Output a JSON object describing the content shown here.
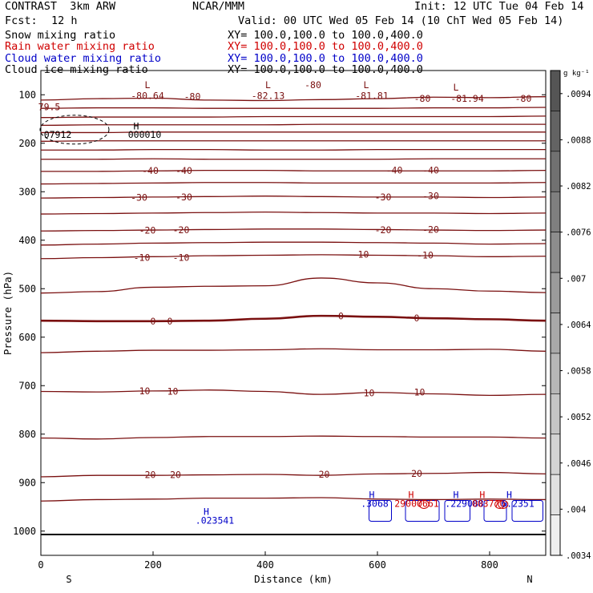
{
  "header": {
    "left_title": "CONTRAST  3km ARW",
    "center_title": "NCAR/MMM",
    "init": "Init: 12 UTC Tue 04 Feb 14",
    "fcst_label": "Fcst:",
    "fcst_value": "12 h",
    "valid": "Valid: 00 UTC Wed 05 Feb 14 (10 ChT Wed 05 Feb 14)"
  },
  "fields": [
    {
      "name": "Snow mixing ratio",
      "xy": "XY= 100.0,100.0 to 100.0,400.0",
      "color": "#000000"
    },
    {
      "name": "Rain water mixing ratio",
      "xy": "XY= 100.0,100.0 to 100.0,400.0",
      "color": "#d00000"
    },
    {
      "name": "Cloud water mixing ratio",
      "xy": "XY= 100.0,100.0 to 100.0,400.0",
      "color": "#0000c8"
    },
    {
      "name": "Cloud ice mixing ratio",
      "xy": "XY= 100.0,100.0 to 100.0,400.0",
      "color": "#000000"
    }
  ],
  "colors": {
    "contour": "#7a1010",
    "rain": "#d00000",
    "cloud_water": "#0000c8",
    "axis": "#000000"
  },
  "chart_data": {
    "type": "contour",
    "xlabel": "Distance (km)",
    "ylabel": "Pressure (hPa)",
    "xlim": [
      0,
      900
    ],
    "ylim": [
      1050,
      50
    ],
    "x_ticks": [
      "0",
      "200",
      "400",
      "600",
      "800"
    ],
    "y_ticks": [
      "100",
      "200",
      "300",
      "400",
      "500",
      "600",
      "700",
      "800",
      "900",
      "1000"
    ],
    "x_end_labels": {
      "left": "S",
      "right": "N"
    },
    "contour_levels_note": "Temperature contours every 5 °C (labels shown at -80,-40,-30,-20,-10,0,10,20)",
    "contours": [
      {
        "level": -80,
        "p": [
          111,
          108,
          107,
          111,
          112,
          110,
          108,
          105,
          106,
          104
        ]
      },
      {
        "level": -75,
        "p": [
          128,
          127,
          127,
          128,
          128,
          128,
          128,
          127,
          127,
          126
        ]
      },
      {
        "level": -70,
        "p": [
          147,
          146,
          146,
          146,
          145,
          145,
          145,
          145,
          145,
          144
        ]
      },
      {
        "level": -65,
        "p": [
          163,
          162,
          162,
          162,
          162,
          161,
          161,
          161,
          161,
          161
        ]
      },
      {
        "level": -60,
        "p": [
          178,
          178,
          177,
          177,
          177,
          177,
          177,
          177,
          177,
          177
        ]
      },
      {
        "level": -55,
        "p": [
          196,
          195,
          195,
          195,
          195,
          195,
          195,
          195,
          195,
          195
        ]
      },
      {
        "level": -50,
        "p": [
          214,
          214,
          213,
          213,
          214,
          214,
          213,
          213,
          213,
          213
        ]
      },
      {
        "level": -45,
        "p": [
          233,
          233,
          232,
          233,
          233,
          233,
          233,
          232,
          232,
          232
        ]
      },
      {
        "level": -40,
        "p": [
          258,
          258,
          257,
          256,
          256,
          257,
          257,
          257,
          257,
          256
        ]
      },
      {
        "level": -35,
        "p": [
          284,
          283,
          282,
          281,
          281,
          282,
          282,
          282,
          282,
          281
        ]
      },
      {
        "level": -30,
        "p": [
          313,
          312,
          311,
          310,
          309,
          310,
          311,
          311,
          312,
          311
        ]
      },
      {
        "level": -25,
        "p": [
          346,
          345,
          344,
          343,
          342,
          343,
          344,
          344,
          345,
          344
        ]
      },
      {
        "level": -20,
        "p": [
          381,
          380,
          379,
          378,
          377,
          377,
          378,
          379,
          380,
          379
        ]
      },
      {
        "level": -15,
        "p": [
          410,
          408,
          406,
          405,
          404,
          404,
          405,
          406,
          408,
          407
        ]
      },
      {
        "level": -10,
        "p": [
          438,
          436,
          434,
          432,
          431,
          430,
          431,
          432,
          434,
          433
        ]
      },
      {
        "level": -5,
        "p": [
          509,
          506,
          497,
          495,
          494,
          478,
          488,
          500,
          505,
          508
        ]
      },
      {
        "level": 0,
        "p": [
          566,
          567,
          567,
          566,
          562,
          556,
          558,
          561,
          563,
          566
        ]
      },
      {
        "level": 5,
        "p": [
          632,
          629,
          627,
          627,
          626,
          624,
          626,
          626,
          625,
          629
        ]
      },
      {
        "level": 10,
        "p": [
          712,
          713,
          711,
          709,
          712,
          718,
          714,
          717,
          720,
          718
        ]
      },
      {
        "level": 15,
        "p": [
          808,
          810,
          807,
          805,
          805,
          804,
          805,
          806,
          806,
          808
        ]
      },
      {
        "level": 20,
        "p": [
          888,
          885,
          885,
          884,
          883,
          885,
          882,
          881,
          879,
          882
        ]
      },
      {
        "level": 25,
        "p": [
          938,
          935,
          934,
          932,
          932,
          931,
          934,
          935,
          934,
          935
        ]
      },
      {
        "level": 28,
        "p": [
          1007,
          1007,
          1007,
          1007,
          1007,
          1007,
          1007,
          1007,
          1007,
          1007
        ]
      }
    ],
    "contour_x": [
      0,
      100,
      200,
      300,
      400,
      500,
      600,
      700,
      800,
      900
    ],
    "labels": [
      {
        "text": "L",
        "x": 190,
        "p": 80,
        "color": "contour"
      },
      {
        "text": "-80.64",
        "x": 190,
        "p": 102,
        "color": "contour"
      },
      {
        "text": "-80",
        "x": 270,
        "p": 104,
        "color": "contour"
      },
      {
        "text": "L",
        "x": 405,
        "p": 80,
        "color": "contour"
      },
      {
        "text": "-80",
        "x": 485,
        "p": 80,
        "color": "contour"
      },
      {
        "text": "-82.13",
        "x": 405,
        "p": 102,
        "color": "contour"
      },
      {
        "text": "L",
        "x": 580,
        "p": 80,
        "color": "contour"
      },
      {
        "text": "-81.81",
        "x": 590,
        "p": 102,
        "color": "contour"
      },
      {
        "text": "-80",
        "x": 680,
        "p": 108,
        "color": "contour"
      },
      {
        "text": "L",
        "x": 740,
        "p": 85,
        "color": "contour"
      },
      {
        "text": "-81.94",
        "x": 760,
        "p": 108,
        "color": "contour"
      },
      {
        "text": "-80",
        "x": 860,
        "p": 108,
        "color": "contour"
      },
      {
        "text": "79.5",
        "x": 15,
        "p": 125,
        "color": "contour"
      },
      {
        "text": "-40",
        "x": 195,
        "p": 257,
        "color": "contour"
      },
      {
        "text": "-40",
        "x": 255,
        "p": 257,
        "color": "contour"
      },
      {
        "text": "-40",
        "x": 630,
        "p": 256,
        "color": "contour"
      },
      {
        "text": "-40",
        "x": 695,
        "p": 256,
        "color": "contour"
      },
      {
        "text": "-30",
        "x": 175,
        "p": 312,
        "color": "contour"
      },
      {
        "text": "-30",
        "x": 255,
        "p": 311,
        "color": "contour"
      },
      {
        "text": "-30",
        "x": 610,
        "p": 311,
        "color": "contour"
      },
      {
        "text": "-30",
        "x": 695,
        "p": 309,
        "color": "contour"
      },
      {
        "text": "-20",
        "x": 190,
        "p": 380,
        "color": "contour"
      },
      {
        "text": "-20",
        "x": 250,
        "p": 379,
        "color": "contour"
      },
      {
        "text": "-20",
        "x": 610,
        "p": 379,
        "color": "contour"
      },
      {
        "text": "-20",
        "x": 695,
        "p": 378,
        "color": "contour"
      },
      {
        "text": "-10",
        "x": 180,
        "p": 436,
        "color": "contour"
      },
      {
        "text": "-10",
        "x": 250,
        "p": 436,
        "color": "contour"
      },
      {
        "text": "-10",
        "x": 570,
        "p": 429,
        "color": "contour"
      },
      {
        "text": "-10",
        "x": 685,
        "p": 431,
        "color": "contour"
      },
      {
        "text": "0",
        "x": 200,
        "p": 567,
        "color": "contour"
      },
      {
        "text": "0",
        "x": 230,
        "p": 567,
        "color": "contour"
      },
      {
        "text": "0",
        "x": 535,
        "p": 557,
        "color": "contour"
      },
      {
        "text": "0",
        "x": 670,
        "p": 561,
        "color": "contour"
      },
      {
        "text": "10",
        "x": 185,
        "p": 711,
        "color": "contour"
      },
      {
        "text": "10",
        "x": 235,
        "p": 712,
        "color": "contour"
      },
      {
        "text": "10",
        "x": 585,
        "p": 715,
        "color": "contour"
      },
      {
        "text": "10",
        "x": 675,
        "p": 714,
        "color": "contour"
      },
      {
        "text": "20",
        "x": 195,
        "p": 884,
        "color": "contour"
      },
      {
        "text": "20",
        "x": 240,
        "p": 884,
        "color": "contour"
      },
      {
        "text": "20",
        "x": 505,
        "p": 883,
        "color": "contour"
      },
      {
        "text": "20",
        "x": 670,
        "p": 881,
        "color": "contour"
      },
      {
        "text": "H",
        "x": 170,
        "p": 165,
        "color": "axis"
      },
      {
        "text": "000010",
        "x": 185,
        "p": 182,
        "color": "axis"
      },
      {
        "text": "07912",
        "x": 30,
        "p": 182,
        "color": "axis"
      },
      {
        "text": "H",
        "x": 295,
        "p": 960,
        "color": "cloud_water"
      },
      {
        "text": ".023541",
        "x": 310,
        "p": 978,
        "color": "cloud_water"
      },
      {
        "text": "H",
        "x": 590,
        "p": 925,
        "color": "cloud_water"
      },
      {
        "text": ".3068",
        "x": 595,
        "p": 943,
        "color": "cloud_water"
      },
      {
        "text": "H",
        "x": 660,
        "p": 925,
        "color": "rain"
      },
      {
        "text": "29000661",
        "x": 670,
        "p": 943,
        "color": "rain"
      },
      {
        "text": "H",
        "x": 740,
        "p": 925,
        "color": "cloud_water"
      },
      {
        "text": ".229088",
        "x": 755,
        "p": 943,
        "color": "cloud_water"
      },
      {
        "text": "H",
        "x": 787,
        "p": 925,
        "color": "rain"
      },
      {
        "text": "003770",
        "x": 798,
        "p": 943,
        "color": "rain"
      },
      {
        "text": "H",
        "x": 835,
        "p": 925,
        "color": "cloud_water"
      },
      {
        "text": "6.2351",
        "x": 850,
        "p": 943,
        "color": "cloud_water"
      }
    ],
    "colorbar": {
      "unit": "g kg⁻¹",
      "ticks": [
        ".0094",
        ".0088",
        ".0082",
        ".0076",
        ".007",
        ".0064",
        ".0058",
        ".0052",
        ".0046",
        ".004",
        ".0034"
      ],
      "range": [
        0.0034,
        0.0097
      ]
    }
  }
}
